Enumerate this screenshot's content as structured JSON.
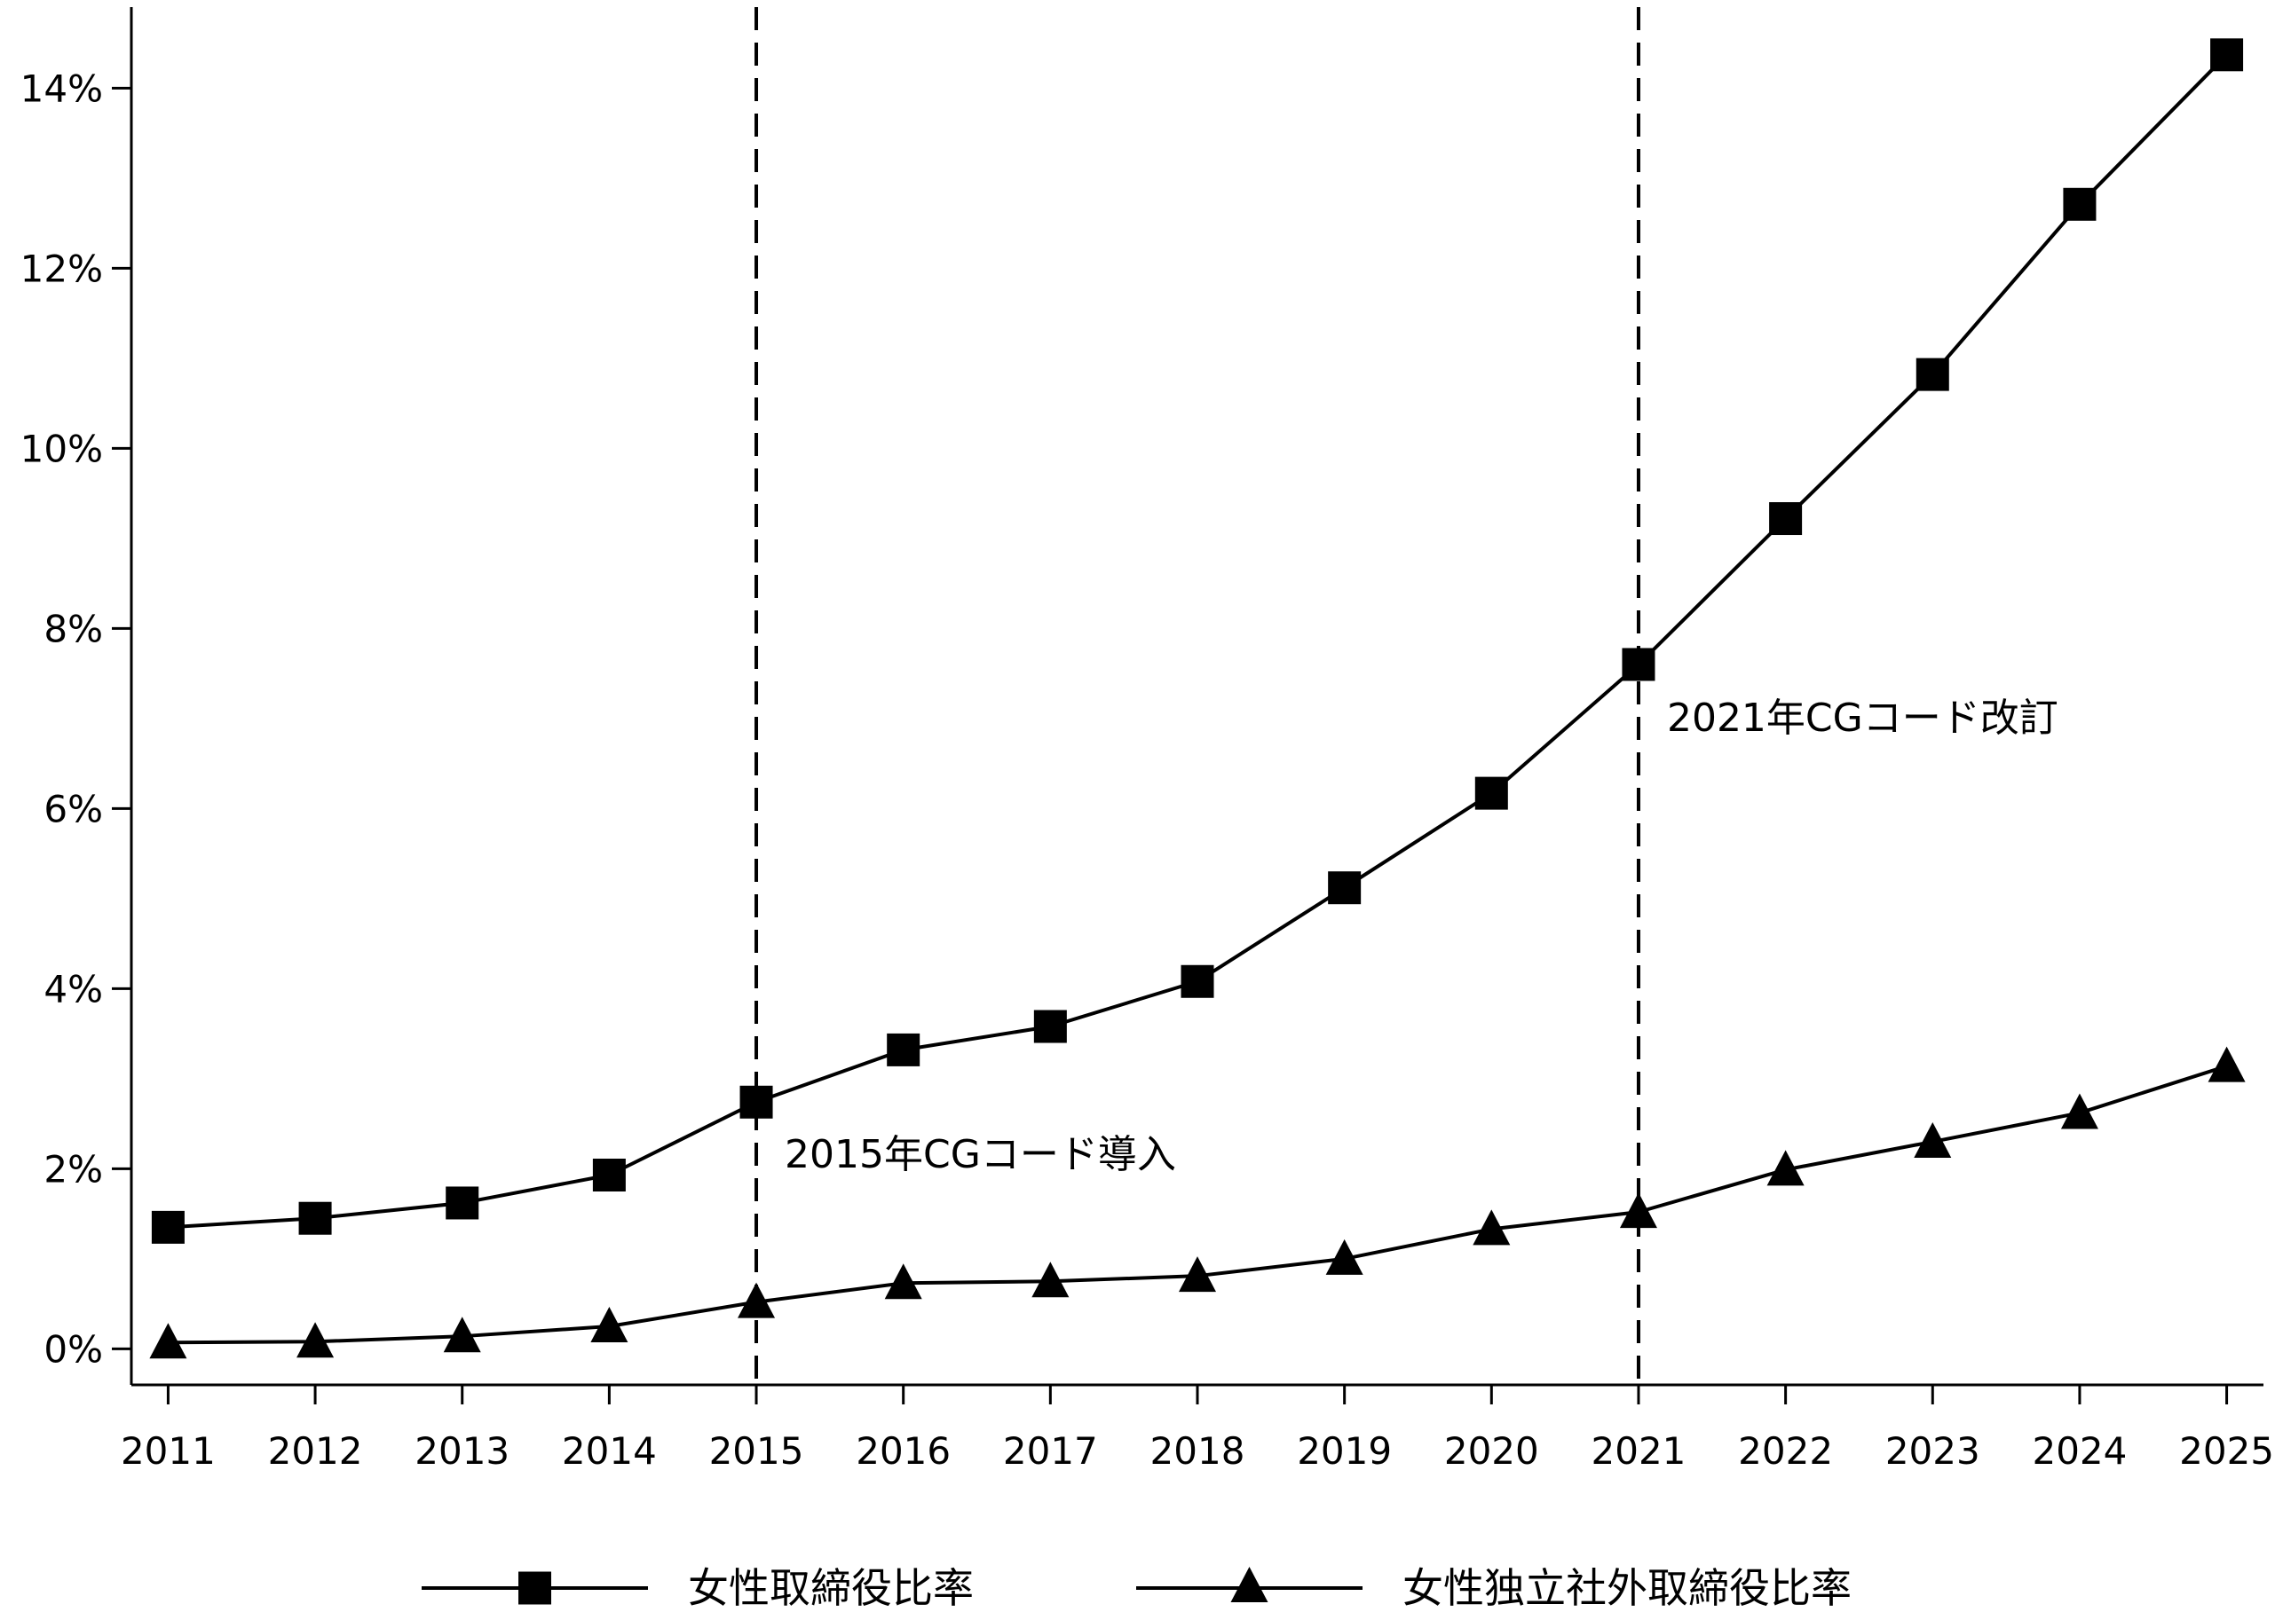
{
  "chart_data": {
    "type": "line",
    "x": [
      2011,
      2012,
      2013,
      2014,
      2015,
      2016,
      2017,
      2018,
      2019,
      2020,
      2021,
      2022,
      2023,
      2024,
      2025
    ],
    "series": [
      {
        "name": "女性取締役比率",
        "marker": "square",
        "values": [
          1.35,
          1.45,
          1.62,
          1.93,
          2.74,
          3.32,
          3.58,
          4.08,
          5.12,
          6.17,
          7.6,
          9.22,
          10.82,
          12.71,
          14.37
        ]
      },
      {
        "name": "女性独立社外取締役比率",
        "marker": "triangle",
        "values": [
          0.07,
          0.08,
          0.14,
          0.25,
          0.52,
          0.73,
          0.75,
          0.81,
          1.0,
          1.33,
          1.52,
          1.99,
          2.3,
          2.62,
          3.14
        ]
      }
    ],
    "ylim": [
      -0.4,
      14.9
    ],
    "xlim": [
      2010.75,
      2025.25
    ],
    "yticks": [
      0,
      2,
      4,
      6,
      8,
      10,
      12,
      14
    ],
    "ytick_labels": [
      "0%",
      "2%",
      "4%",
      "6%",
      "8%",
      "10%",
      "12%",
      "14%"
    ],
    "xtick_labels": [
      "2011",
      "2012",
      "2013",
      "2014",
      "2015",
      "2016",
      "2017",
      "2018",
      "2019",
      "2020",
      "2021",
      "2022",
      "2023",
      "2024",
      "2025"
    ],
    "annotations": [
      {
        "x": 2015,
        "text": "2015年CGコード導入",
        "text_y": 2.15
      },
      {
        "x": 2021,
        "text": "2021年CGコード改訂",
        "text_y": 7.0
      }
    ],
    "title": "",
    "xlabel": "",
    "ylabel": "",
    "grid": false,
    "legend_position": "bottom",
    "line_color": "#000000"
  }
}
